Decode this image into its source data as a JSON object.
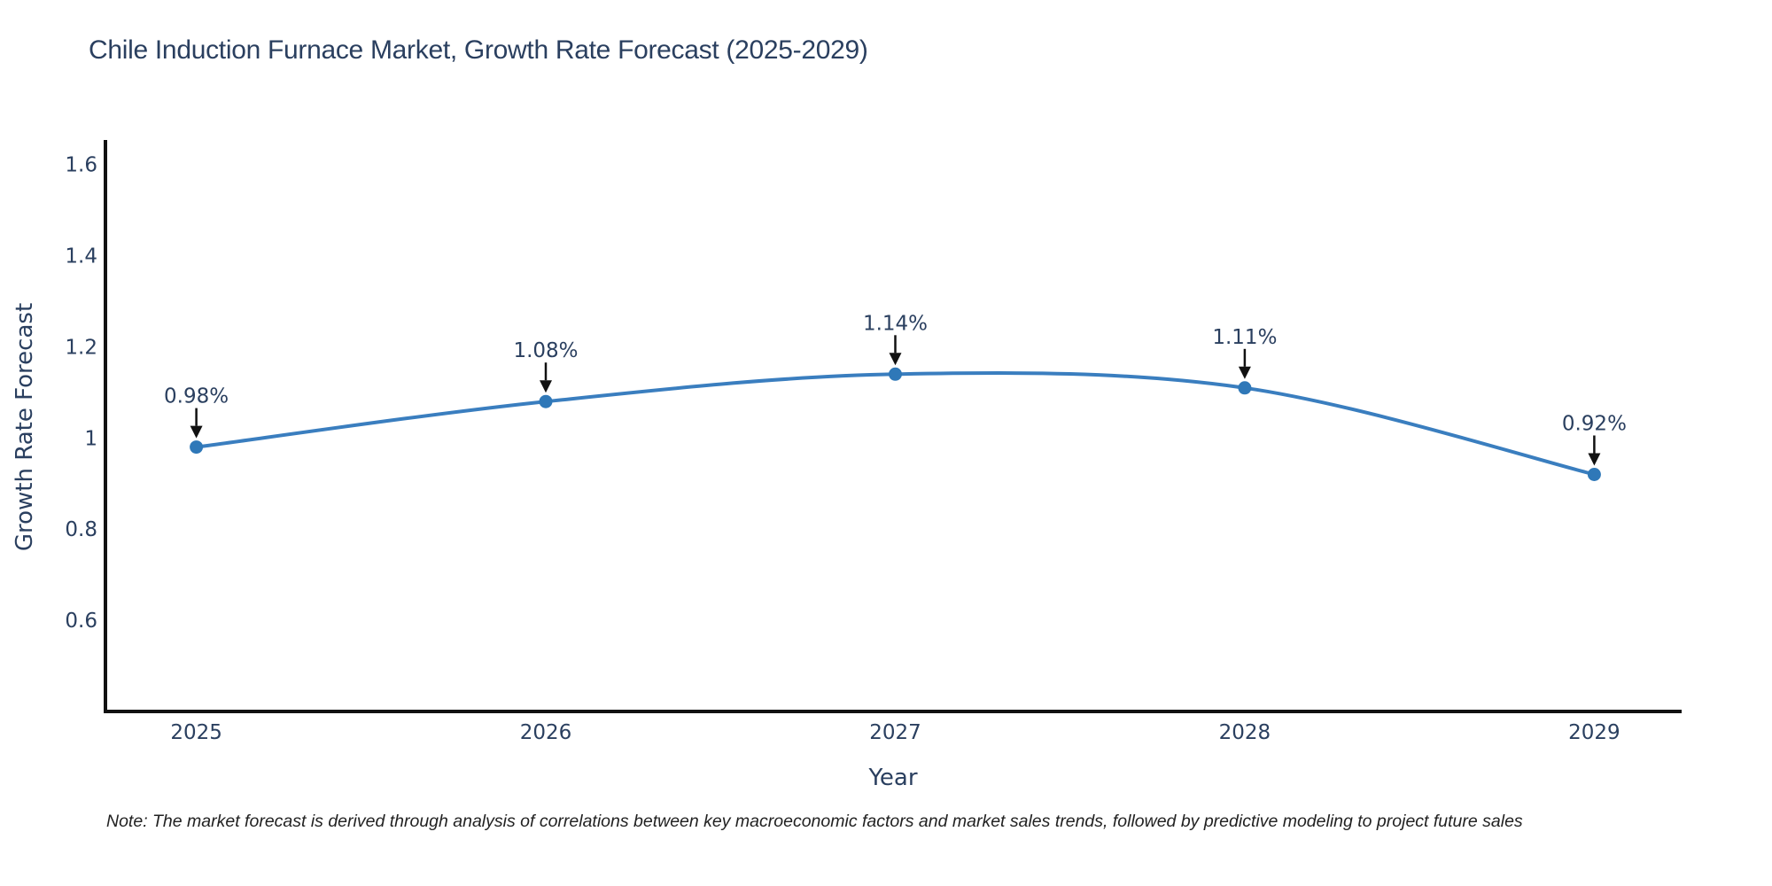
{
  "page": {
    "background_color": "#ffffff"
  },
  "chart_data": {
    "type": "line",
    "title": "Chile Induction Furnace Market, Growth Rate Forecast (2025-2029)",
    "xlabel": "Year",
    "ylabel": "Growth Rate Forecast",
    "x": [
      2025,
      2026,
      2027,
      2028,
      2029
    ],
    "series": [
      {
        "name": "Growth Rate Forecast",
        "values": [
          0.98,
          1.08,
          1.14,
          1.11,
          0.92
        ]
      }
    ],
    "point_labels": [
      "0.98%",
      "1.08%",
      "1.14%",
      "1.11%",
      "0.92%"
    ],
    "xtick_labels": [
      "2025",
      "2026",
      "2027",
      "2028",
      "2029"
    ],
    "ytick_values": [
      0.6,
      0.8,
      1,
      1.2,
      1.4,
      1.6
    ],
    "ytick_labels": [
      "0.6",
      "0.8",
      "1",
      "1.2",
      "1.4",
      "1.6"
    ],
    "ylim": [
      0.4,
      1.65
    ],
    "xlim": [
      2024.74,
      2029.25
    ],
    "grid": false,
    "legend_position": "none",
    "line_color": "#3a7ebf",
    "marker_color": "#2f78b8",
    "axis_color": "#111111",
    "text_color": "#2a3f5f",
    "annotation_color": "#2a3f5f",
    "arrow_color": "#111111"
  },
  "note": {
    "text": "Note: The market forecast is derived through analysis of correlations between key macroeconomic factors and market sales trends, followed by predictive modeling to project future sales"
  }
}
